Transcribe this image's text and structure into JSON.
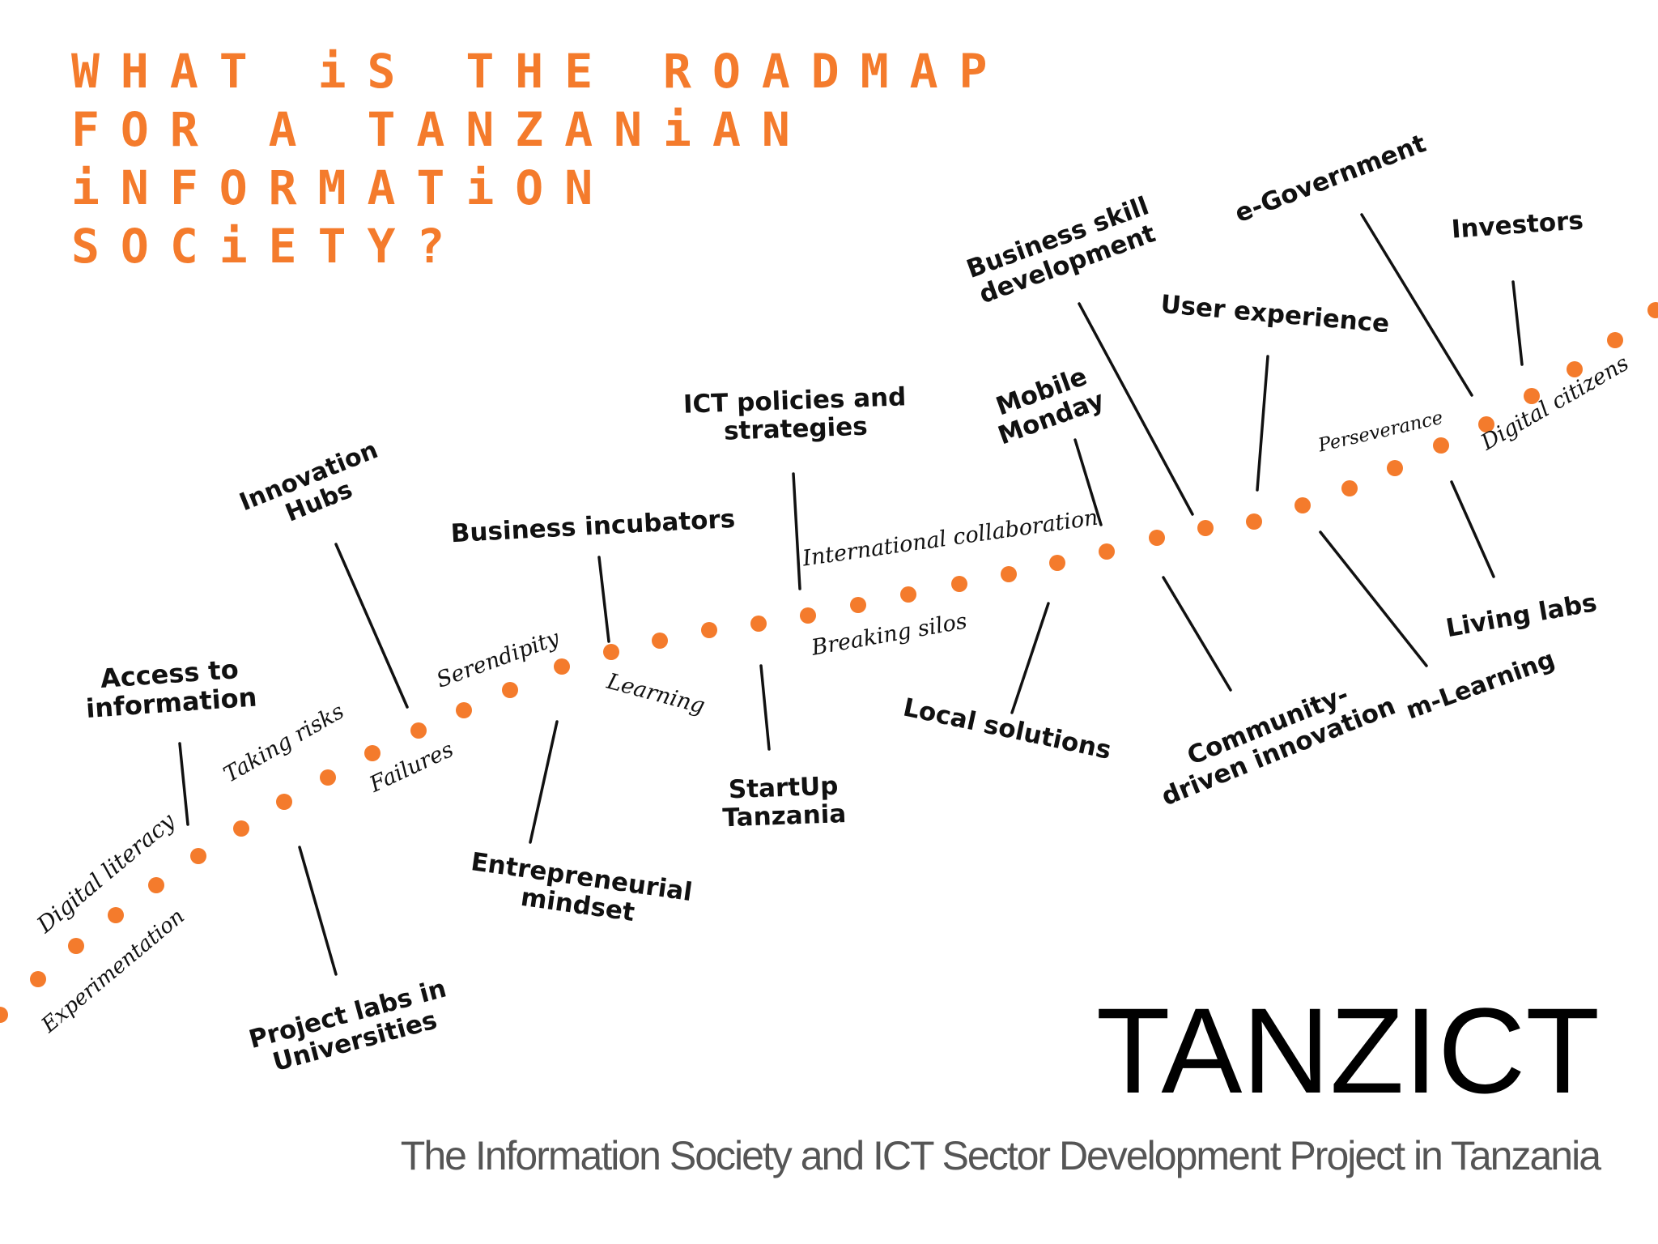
{
  "title_lines": [
    "WHAT iS THE ROADMAP",
    "FOR A TANZANiAN",
    "iNFORMATiON",
    "SOCiETY?"
  ],
  "roadmap": {
    "dot_color": "#f47b2c",
    "above_labels": [
      [
        "Access to",
        "information"
      ],
      [
        "Innovation",
        "Hubs"
      ],
      [
        "Business incubators"
      ],
      [
        "ICT policies and",
        "strategies"
      ],
      [
        "Mobile",
        "Monday"
      ],
      [
        "Business skill",
        "development"
      ],
      [
        "User experience"
      ],
      [
        "e-Government"
      ],
      [
        "Investors"
      ]
    ],
    "below_labels": [
      [
        "Project labs in",
        "Universities"
      ],
      [
        "Entrepreneurial",
        "mindset"
      ],
      [
        "StartUp",
        "Tanzania"
      ],
      [
        "Local solutions"
      ],
      [
        "Community-",
        "driven innovation"
      ],
      [
        "m-Learning"
      ],
      [
        "Living labs"
      ]
    ],
    "path_words": [
      "Digital literacy",
      "Experimentation",
      "Taking risks",
      "Failures",
      "Serendipity",
      "Learning",
      "International collaboration",
      "Breaking silos",
      "Perseverance",
      "Digital citizens"
    ]
  },
  "brand": "TANZICT",
  "subtitle": "The Information Society and ICT Sector Development Project in Tanzania"
}
